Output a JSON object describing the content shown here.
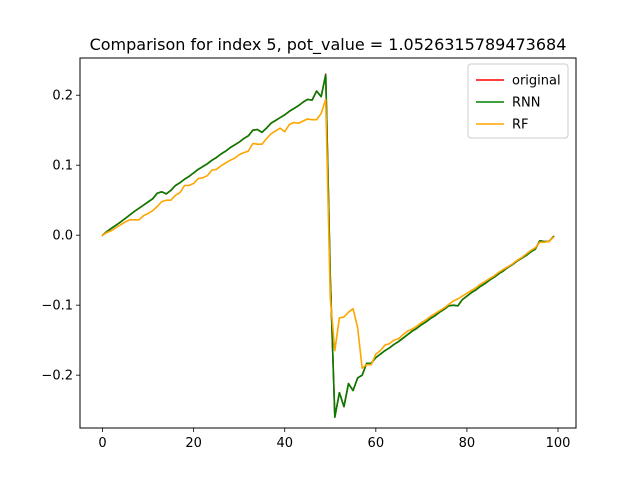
{
  "chart_data": {
    "type": "line",
    "title": "Comparison for index 5, pot_value = 1.0526315789473684",
    "xlabel": "",
    "ylabel": "",
    "xlim": [
      -4.95,
      103.95
    ],
    "ylim": [
      -0.2755,
      0.2532
    ],
    "x_ticks": [
      0,
      20,
      40,
      60,
      80,
      100
    ],
    "y_ticks": [
      -0.2,
      -0.1,
      0.0,
      0.1,
      0.2
    ],
    "x_tick_labels": [
      "0",
      "20",
      "40",
      "60",
      "80",
      "100"
    ],
    "y_tick_labels": [
      "−0.2",
      "−0.1",
      "0.0",
      "0.1",
      "0.2"
    ],
    "grid": false,
    "legend_position": "top-right",
    "x": [
      0,
      1,
      2,
      3,
      4,
      5,
      6,
      7,
      8,
      9,
      10,
      11,
      12,
      13,
      14,
      15,
      16,
      17,
      18,
      19,
      20,
      21,
      22,
      23,
      24,
      25,
      26,
      27,
      28,
      29,
      30,
      31,
      32,
      33,
      34,
      35,
      36,
      37,
      38,
      39,
      40,
      41,
      42,
      43,
      44,
      45,
      46,
      47,
      48,
      49,
      50,
      51,
      52,
      53,
      54,
      55,
      56,
      57,
      58,
      59,
      60,
      61,
      62,
      63,
      64,
      65,
      66,
      67,
      68,
      69,
      70,
      71,
      72,
      73,
      74,
      75,
      76,
      77,
      78,
      79,
      80,
      81,
      82,
      83,
      84,
      85,
      86,
      87,
      88,
      89,
      90,
      91,
      92,
      93,
      94,
      95,
      96,
      97,
      98,
      99
    ],
    "series": [
      {
        "name": "original",
        "color": "#ff0000",
        "values": [
          0.0,
          0.0055,
          0.01,
          0.0145,
          0.019,
          0.024,
          0.029,
          0.034,
          0.0385,
          0.043,
          0.0475,
          0.052,
          0.06,
          0.062,
          0.059,
          0.064,
          0.071,
          0.075,
          0.08,
          0.084,
          0.089,
          0.094,
          0.098,
          0.102,
          0.107,
          0.111,
          0.116,
          0.12,
          0.125,
          0.129,
          0.133,
          0.138,
          0.142,
          0.15,
          0.151,
          0.147,
          0.153,
          0.16,
          0.164,
          0.168,
          0.172,
          0.177,
          0.181,
          0.185,
          0.19,
          0.194,
          0.193,
          0.206,
          0.198,
          0.23,
          -0.06,
          -0.26,
          -0.225,
          -0.245,
          -0.212,
          -0.222,
          -0.204,
          -0.2,
          -0.183,
          -0.183,
          -0.175,
          -0.17,
          -0.165,
          -0.161,
          -0.156,
          -0.152,
          -0.147,
          -0.142,
          -0.137,
          -0.133,
          -0.128,
          -0.124,
          -0.119,
          -0.115,
          -0.11,
          -0.106,
          -0.101,
          -0.1,
          -0.101,
          -0.092,
          -0.087,
          -0.082,
          -0.078,
          -0.073,
          -0.069,
          -0.064,
          -0.06,
          -0.055,
          -0.051,
          -0.046,
          -0.042,
          -0.037,
          -0.033,
          -0.029,
          -0.024,
          -0.02,
          -0.008,
          -0.009,
          -0.009,
          -0.002
        ]
      },
      {
        "name": "RNN",
        "color": "#008000",
        "values": [
          0.0,
          0.0055,
          0.01,
          0.0145,
          0.019,
          0.024,
          0.029,
          0.034,
          0.0385,
          0.043,
          0.0475,
          0.052,
          0.06,
          0.062,
          0.059,
          0.064,
          0.071,
          0.075,
          0.08,
          0.084,
          0.089,
          0.094,
          0.098,
          0.102,
          0.107,
          0.111,
          0.116,
          0.12,
          0.125,
          0.129,
          0.133,
          0.138,
          0.142,
          0.15,
          0.151,
          0.147,
          0.153,
          0.16,
          0.164,
          0.168,
          0.172,
          0.177,
          0.181,
          0.185,
          0.19,
          0.194,
          0.193,
          0.206,
          0.198,
          0.229,
          -0.06,
          -0.26,
          -0.225,
          -0.245,
          -0.212,
          -0.222,
          -0.204,
          -0.2,
          -0.183,
          -0.183,
          -0.175,
          -0.17,
          -0.165,
          -0.161,
          -0.156,
          -0.152,
          -0.147,
          -0.142,
          -0.137,
          -0.133,
          -0.128,
          -0.124,
          -0.119,
          -0.115,
          -0.11,
          -0.106,
          -0.101,
          -0.1,
          -0.101,
          -0.092,
          -0.087,
          -0.082,
          -0.078,
          -0.073,
          -0.069,
          -0.064,
          -0.06,
          -0.055,
          -0.051,
          -0.046,
          -0.042,
          -0.037,
          -0.033,
          -0.029,
          -0.024,
          -0.02,
          -0.008,
          -0.009,
          -0.009,
          -0.002
        ]
      },
      {
        "name": "RF",
        "color": "#ffa500",
        "values": [
          0.0,
          0.004,
          0.0065,
          0.011,
          0.015,
          0.019,
          0.022,
          0.022,
          0.022,
          0.028,
          0.031,
          0.035,
          0.041,
          0.048,
          0.05,
          0.05,
          0.057,
          0.061,
          0.071,
          0.071,
          0.074,
          0.081,
          0.082,
          0.085,
          0.093,
          0.094,
          0.099,
          0.103,
          0.107,
          0.11,
          0.115,
          0.118,
          0.12,
          0.131,
          0.13,
          0.13,
          0.138,
          0.145,
          0.149,
          0.153,
          0.148,
          0.158,
          0.161,
          0.16,
          0.163,
          0.166,
          0.165,
          0.165,
          0.174,
          0.194,
          -0.09,
          -0.165,
          -0.118,
          -0.117,
          -0.11,
          -0.105,
          -0.132,
          -0.19,
          -0.185,
          -0.185,
          -0.17,
          -0.165,
          -0.157,
          -0.155,
          -0.15,
          -0.148,
          -0.142,
          -0.137,
          -0.134,
          -0.13,
          -0.125,
          -0.121,
          -0.116,
          -0.112,
          -0.108,
          -0.104,
          -0.099,
          -0.094,
          -0.091,
          -0.087,
          -0.083,
          -0.079,
          -0.075,
          -0.07,
          -0.066,
          -0.062,
          -0.058,
          -0.053,
          -0.049,
          -0.045,
          -0.041,
          -0.036,
          -0.032,
          -0.027,
          -0.022,
          -0.018,
          -0.01,
          -0.01,
          -0.009,
          -0.003
        ]
      }
    ]
  }
}
